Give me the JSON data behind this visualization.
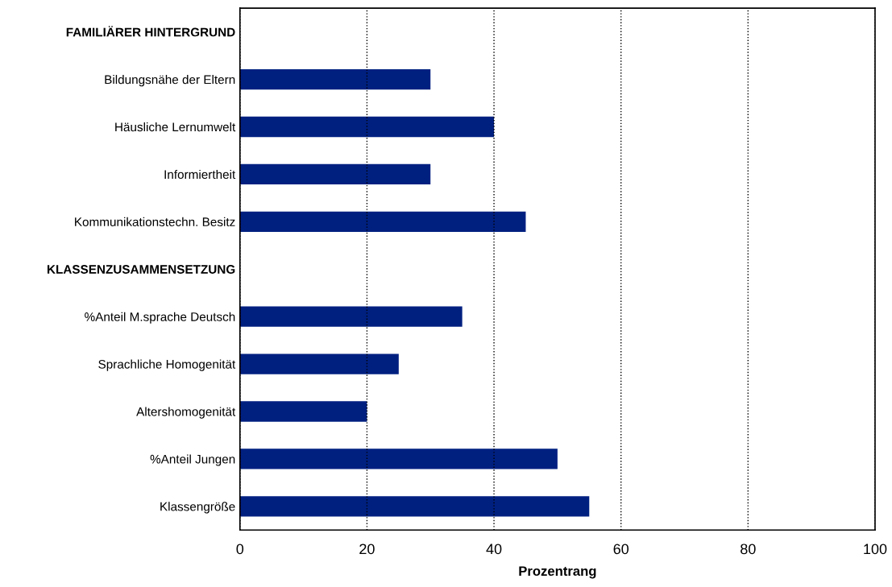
{
  "chart_data": {
    "type": "bar",
    "orientation": "horizontal",
    "xlabel": "Prozentrang",
    "categories": [
      "FAMILIÄRER HINTERGRUND",
      "Bildungsnähe der Eltern",
      "Häusliche Lernumwelt",
      "Informiertheit",
      "Kommunikationstechn. Besitz",
      "KLASSENZUSAMMENSETZUNG",
      "%Anteil M.sprache Deutsch",
      "Sprachliche Homogenität",
      "Altershomogenität",
      "%Anteil Jungen",
      "Klassengröße"
    ],
    "values": [
      null,
      30,
      40,
      30,
      45,
      null,
      35,
      25,
      20,
      50,
      55
    ],
    "color": "#002080",
    "xlim": [
      0,
      100
    ],
    "xticks": [
      0,
      20,
      40,
      60,
      80,
      100
    ],
    "grid": "x"
  }
}
